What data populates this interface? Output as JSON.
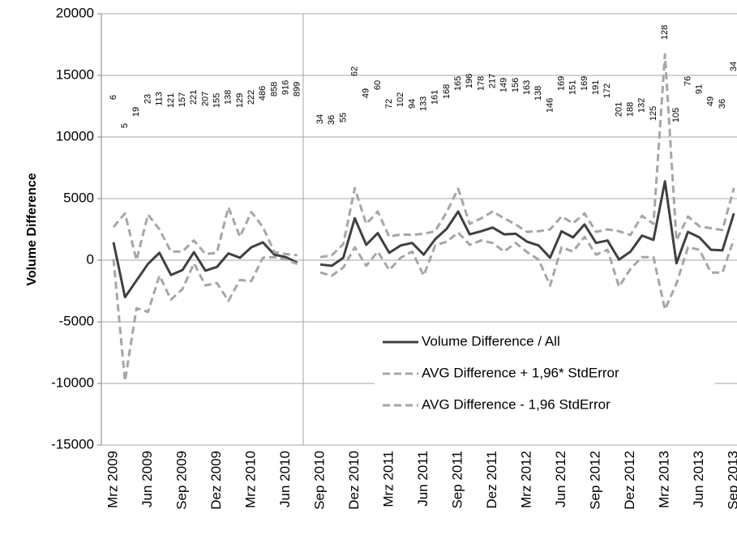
{
  "chart_data": {
    "type": "line",
    "y_label": "Volume Difference",
    "categories": [
      "Mrz 2009",
      null,
      null,
      "Jun 2009",
      null,
      null,
      "Sep 2009",
      null,
      null,
      "Dez 2009",
      null,
      null,
      "Mrz 2010",
      null,
      null,
      "Jun 2010",
      null,
      null,
      "Sep 2010",
      null,
      null,
      "Dez 2010",
      null,
      null,
      "Mrz 2011",
      null,
      null,
      "Jun 2011",
      null,
      null,
      "Sep 2011",
      null,
      null,
      "Dez 2011",
      null,
      null,
      "Mrz 2012",
      null,
      null,
      "Jun 2012",
      null,
      null,
      "Sep 2012",
      null,
      null,
      "Dez 2012",
      null,
      null,
      "Mrz 2013",
      null,
      null,
      "Jun 2013",
      null,
      null,
      "Sep 2013"
    ],
    "series": [
      {
        "name": "Volume Difference / All",
        "color": "#404040",
        "dashed": false,
        "values": [
          1450,
          -3000,
          -1650,
          -300,
          600,
          -1200,
          -800,
          650,
          -850,
          -550,
          550,
          200,
          1050,
          1450,
          450,
          250,
          -200,
          null,
          -350,
          -450,
          200,
          3400,
          1250,
          2200,
          600,
          1200,
          1400,
          450,
          1700,
          2550,
          3950,
          2100,
          2350,
          2650,
          2100,
          2150,
          1500,
          1200,
          200,
          2350,
          1850,
          2900,
          1400,
          1600,
          50,
          700,
          2000,
          1650,
          6400,
          -250,
          2300,
          1850,
          850,
          800,
          3800
        ]
      },
      {
        "name": "AVG Difference + 1,96* StdError",
        "color": "#a6a6a6",
        "dashed": true,
        "values": [
          2700,
          3800,
          0,
          3700,
          2500,
          700,
          700,
          1600,
          500,
          600,
          4300,
          1900,
          3900,
          2700,
          650,
          500,
          400,
          null,
          250,
          400,
          1300,
          5850,
          2950,
          3950,
          1900,
          2100,
          2050,
          2150,
          2350,
          3900,
          5800,
          2950,
          3400,
          3950,
          3400,
          2900,
          2300,
          2350,
          2500,
          3550,
          3000,
          3800,
          2300,
          2500,
          2350,
          2050,
          3600,
          2950,
          16700,
          1600,
          3550,
          2750,
          2600,
          2450,
          5850
        ]
      },
      {
        "name": "AVG Difference - 1,96 StdError",
        "color": "#a6a6a6",
        "dashed": true,
        "values": [
          100,
          -9800,
          -3900,
          -4200,
          -1250,
          -3200,
          -2350,
          -250,
          -2050,
          -1850,
          -3300,
          -1600,
          -1700,
          200,
          250,
          50,
          -300,
          null,
          -1000,
          -1250,
          -600,
          1050,
          -450,
          700,
          -800,
          200,
          700,
          -1250,
          1200,
          1500,
          2250,
          1250,
          1600,
          1400,
          700,
          1400,
          650,
          50,
          -2050,
          1050,
          700,
          1900,
          450,
          850,
          -2150,
          -700,
          250,
          250,
          -4000,
          -1900,
          1050,
          850,
          -1000,
          -1000,
          1700
        ]
      }
    ],
    "point_labels": [
      6,
      5,
      19,
      23,
      113,
      121,
      157,
      221,
      207,
      155,
      138,
      129,
      222,
      486,
      858,
      916,
      899,
      null,
      34,
      36,
      55,
      62,
      49,
      60,
      72,
      102,
      94,
      133,
      161,
      168,
      165,
      196,
      178,
      217,
      149,
      156,
      163,
      138,
      146,
      169,
      151,
      169,
      191,
      172,
      201,
      188,
      132,
      125,
      128,
      105,
      76,
      91,
      49,
      36,
      34
    ],
    "ylim": [
      -15000,
      20000
    ],
    "yticks": [
      -15000,
      -10000,
      -5000,
      0,
      5000,
      10000,
      15000,
      20000
    ],
    "grid": true,
    "legend": "lower right"
  }
}
